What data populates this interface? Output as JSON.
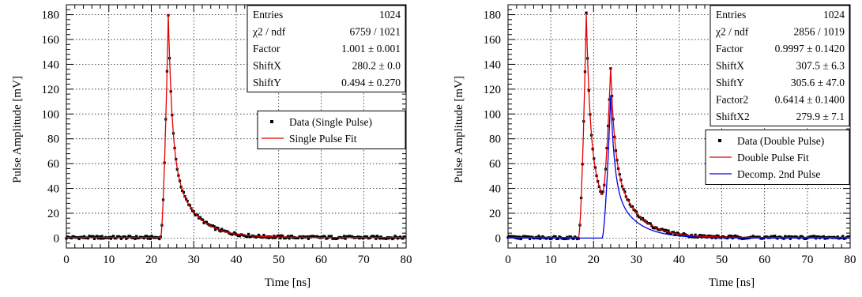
{
  "chart_data": [
    {
      "type": "line",
      "xlabel": "Time [ns]",
      "ylabel": "Pulse Amplitude [mV]",
      "xlim": [
        0,
        80
      ],
      "ylim": [
        -8,
        188
      ],
      "x_ticks": [
        "0",
        "10",
        "20",
        "30",
        "40",
        "50",
        "60",
        "70",
        "80"
      ],
      "y_ticks": [
        "0",
        "20",
        "40",
        "60",
        "80",
        "100",
        "120",
        "140",
        "160",
        "180"
      ],
      "grid": true,
      "stats": [
        {
          "name": "Entries",
          "value": "1024"
        },
        {
          "name": "χ2 / ndf",
          "value": "6759 / 1021"
        },
        {
          "name": "Factor",
          "value": "1.001 ± 0.001"
        },
        {
          "name": "ShiftX",
          "value": "280.2 ± 0.0"
        },
        {
          "name": "ShiftY",
          "value": "0.494 ± 0.270"
        }
      ],
      "legend": [
        {
          "label": "Data (Single Pulse)",
          "style": "marker",
          "color": "#000000"
        },
        {
          "label": "Single Pulse Fit",
          "style": "line",
          "color": "#e00000"
        }
      ],
      "series": [
        {
          "name": "Data (Single Pulse)",
          "pulses": [
            {
              "t0": 22.2,
              "amp": 180,
              "tpeak": 24.0
            }
          ],
          "baseline": 0.5,
          "noise": 1.2
        },
        {
          "name": "Single Pulse Fit",
          "pulses": [
            {
              "t0": 22.2,
              "amp": 180,
              "tpeak": 24.0
            }
          ],
          "baseline": 0.5
        }
      ]
    },
    {
      "type": "line",
      "xlabel": "Time [ns]",
      "ylabel": "Pulse Amplitude [mV]",
      "xlim": [
        0,
        80
      ],
      "ylim": [
        -8,
        188
      ],
      "x_ticks": [
        "0",
        "10",
        "20",
        "30",
        "40",
        "50",
        "60",
        "70",
        "80"
      ],
      "y_ticks": [
        "0",
        "20",
        "40",
        "60",
        "80",
        "100",
        "120",
        "140",
        "160",
        "180"
      ],
      "grid": true,
      "stats": [
        {
          "name": "Entries",
          "value": "1024"
        },
        {
          "name": "χ2 / ndf",
          "value": "2856 / 1019"
        },
        {
          "name": "Factor",
          "value": "0.9997 ± 0.1420"
        },
        {
          "name": "ShiftX",
          "value": "307.5 ± 6.3"
        },
        {
          "name": "ShiftY",
          "value": "305.6 ± 47.0"
        },
        {
          "name": "Factor2",
          "value": "0.6414 ± 0.1400"
        },
        {
          "name": "ShiftX2",
          "value": "279.9 ± 7.1"
        }
      ],
      "legend": [
        {
          "label": "Data (Double Pulse)",
          "style": "marker",
          "color": "#000000"
        },
        {
          "label": "Double Pulse Fit",
          "style": "line",
          "color": "#e00000"
        },
        {
          "label": "Decomp. 2nd Pulse",
          "style": "line",
          "color": "#0000e0"
        }
      ],
      "series": [
        {
          "name": "Data (Double Pulse)",
          "pulses": [
            {
              "t0": 16.5,
              "amp": 180,
              "tpeak": 18.3
            },
            {
              "t0": 22.0,
              "amp": 115,
              "tpeak": 24.0
            }
          ],
          "baseline": 0.5,
          "noise": 1.2
        },
        {
          "name": "Double Pulse Fit",
          "pulses": [
            {
              "t0": 16.5,
              "amp": 180,
              "tpeak": 18.3
            },
            {
              "t0": 22.0,
              "amp": 115,
              "tpeak": 24.0
            }
          ],
          "baseline": 0.5
        },
        {
          "name": "Decomp. 2nd Pulse",
          "pulses": [
            {
              "t0": 22.0,
              "amp": 115,
              "tpeak": 24.0
            }
          ],
          "baseline": 0
        }
      ]
    }
  ]
}
